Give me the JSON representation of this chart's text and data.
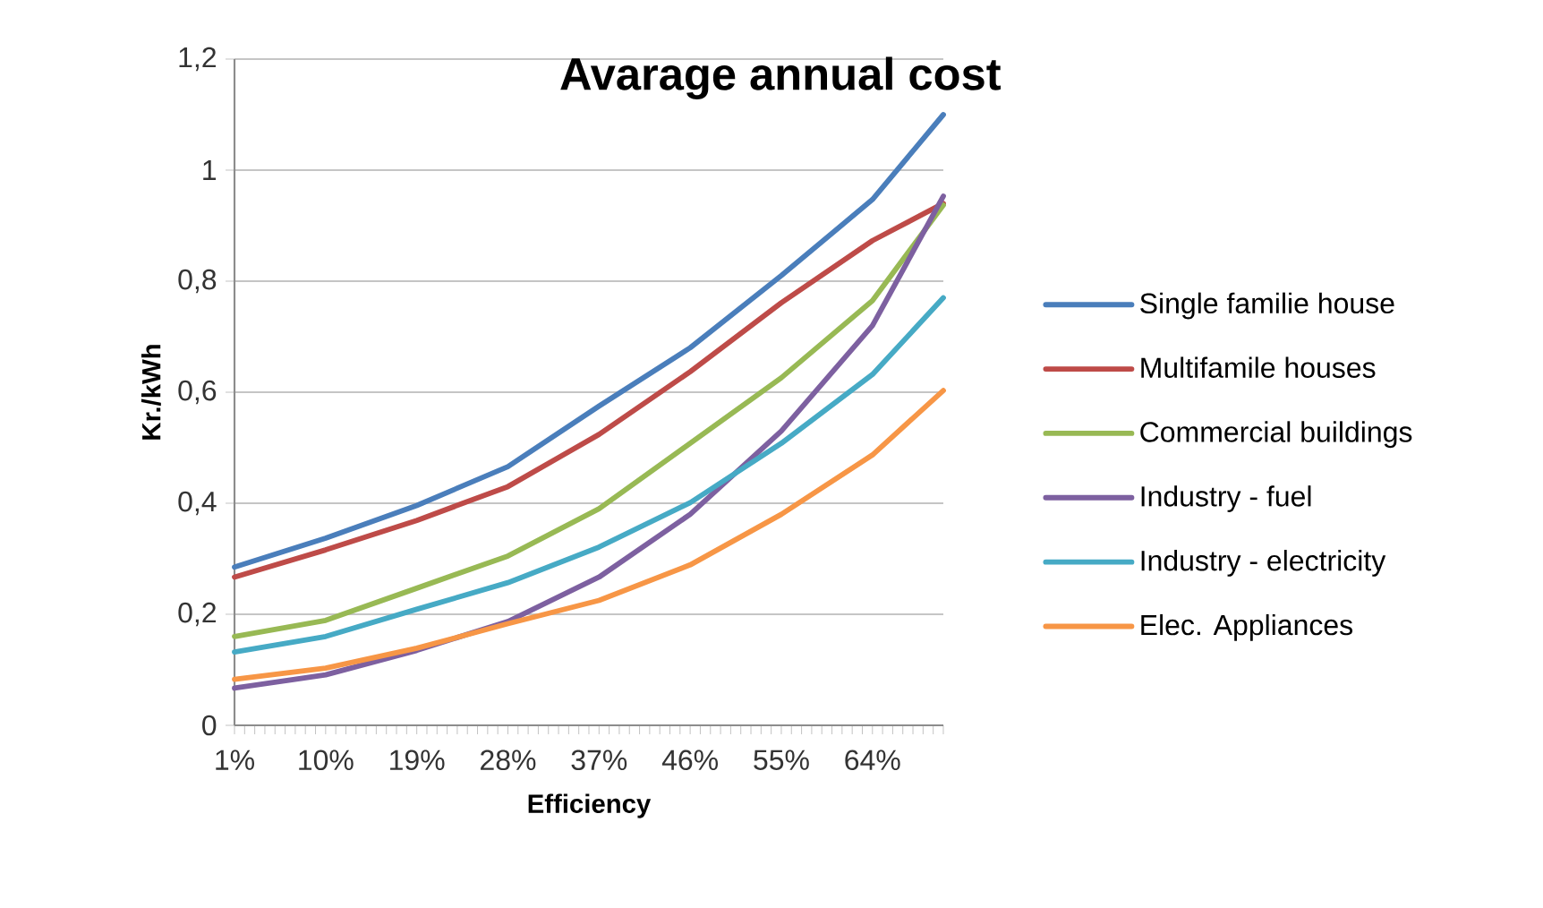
{
  "chart_data": {
    "type": "line",
    "title": "Avarage annual cost",
    "xlabel": "Efficiency",
    "ylabel": "Kr./kWh",
    "xlim": [
      1,
      71
    ],
    "ylim": [
      0,
      1.2
    ],
    "xticks": [
      {
        "value": 1,
        "label": "1%"
      },
      {
        "value": 2,
        "label": null
      },
      {
        "value": 3,
        "label": null
      },
      {
        "value": 4,
        "label": null
      },
      {
        "value": 5,
        "label": null
      },
      {
        "value": 6,
        "label": null
      },
      {
        "value": 7,
        "label": null
      },
      {
        "value": 8,
        "label": null
      },
      {
        "value": 9,
        "label": null
      },
      {
        "value": 10,
        "label": "10%"
      },
      {
        "value": 11,
        "label": null
      },
      {
        "value": 12,
        "label": null
      },
      {
        "value": 13,
        "label": null
      },
      {
        "value": 14,
        "label": null
      },
      {
        "value": 15,
        "label": null
      },
      {
        "value": 16,
        "label": null
      },
      {
        "value": 17,
        "label": null
      },
      {
        "value": 18,
        "label": null
      },
      {
        "value": 19,
        "label": "19%"
      },
      {
        "value": 20,
        "label": null
      },
      {
        "value": 21,
        "label": null
      },
      {
        "value": 22,
        "label": null
      },
      {
        "value": 23,
        "label": null
      },
      {
        "value": 24,
        "label": null
      },
      {
        "value": 25,
        "label": null
      },
      {
        "value": 26,
        "label": null
      },
      {
        "value": 27,
        "label": null
      },
      {
        "value": 28,
        "label": "28%"
      },
      {
        "value": 29,
        "label": null
      },
      {
        "value": 30,
        "label": null
      },
      {
        "value": 31,
        "label": null
      },
      {
        "value": 32,
        "label": null
      },
      {
        "value": 33,
        "label": null
      },
      {
        "value": 34,
        "label": null
      },
      {
        "value": 35,
        "label": null
      },
      {
        "value": 36,
        "label": null
      },
      {
        "value": 37,
        "label": "37%"
      },
      {
        "value": 38,
        "label": null
      },
      {
        "value": 39,
        "label": null
      },
      {
        "value": 40,
        "label": null
      },
      {
        "value": 41,
        "label": null
      },
      {
        "value": 42,
        "label": null
      },
      {
        "value": 43,
        "label": null
      },
      {
        "value": 44,
        "label": null
      },
      {
        "value": 45,
        "label": null
      },
      {
        "value": 46,
        "label": "46%"
      },
      {
        "value": 47,
        "label": null
      },
      {
        "value": 48,
        "label": null
      },
      {
        "value": 49,
        "label": null
      },
      {
        "value": 50,
        "label": null
      },
      {
        "value": 51,
        "label": null
      },
      {
        "value": 52,
        "label": null
      },
      {
        "value": 53,
        "label": null
      },
      {
        "value": 54,
        "label": null
      },
      {
        "value": 55,
        "label": "55%"
      },
      {
        "value": 56,
        "label": null
      },
      {
        "value": 57,
        "label": null
      },
      {
        "value": 58,
        "label": null
      },
      {
        "value": 59,
        "label": null
      },
      {
        "value": 60,
        "label": null
      },
      {
        "value": 61,
        "label": null
      },
      {
        "value": 62,
        "label": null
      },
      {
        "value": 63,
        "label": null
      },
      {
        "value": 64,
        "label": "64%"
      },
      {
        "value": 65,
        "label": null
      },
      {
        "value": 66,
        "label": null
      },
      {
        "value": 67,
        "label": null
      },
      {
        "value": 68,
        "label": null
      },
      {
        "value": 69,
        "label": null
      },
      {
        "value": 70,
        "label": null
      },
      {
        "value": 71,
        "label": null
      }
    ],
    "yticks": [
      {
        "value": 0,
        "label": "0"
      },
      {
        "value": 0.2,
        "label": "0,2"
      },
      {
        "value": 0.4,
        "label": "0,4"
      },
      {
        "value": 0.6,
        "label": "0,6"
      },
      {
        "value": 0.8,
        "label": "0,8"
      },
      {
        "value": 1,
        "label": "1"
      },
      {
        "value": 1.2,
        "label": "1,2"
      }
    ],
    "grid": "y",
    "legend": "right",
    "marker": "none",
    "line_style": "solid",
    "x": [
      1,
      10,
      19,
      28,
      37,
      46,
      55,
      64,
      71
    ],
    "series": [
      {
        "name": "Single familie house",
        "color": "#4a7ebb",
        "values": [
          0.285,
          0.337,
          0.396,
          0.466,
          0.575,
          0.68,
          0.81,
          0.947,
          1.1
        ]
      },
      {
        "name": "Multifamile houses",
        "color": "#be4b48",
        "values": [
          0.267,
          0.316,
          0.369,
          0.43,
          0.524,
          0.637,
          0.761,
          0.873,
          0.94
        ]
      },
      {
        "name": "Commercial buildings",
        "color": "#98b954",
        "values": [
          0.16,
          0.189,
          0.247,
          0.305,
          0.39,
          0.508,
          0.626,
          0.765,
          0.937
        ]
      },
      {
        "name": "Industry - fuel",
        "color": "#7d60a0",
        "values": [
          0.067,
          0.091,
          0.135,
          0.187,
          0.267,
          0.38,
          0.53,
          0.72,
          0.953
        ]
      },
      {
        "name": "Industry - electricity",
        "color": "#46aac5",
        "values": [
          0.132,
          0.16,
          0.209,
          0.257,
          0.321,
          0.401,
          0.508,
          0.632,
          0.77
        ]
      },
      {
        "name": "Elec. Appliances",
        "color": "#f79646",
        "values": [
          0.083,
          0.103,
          0.139,
          0.183,
          0.225,
          0.289,
          0.38,
          0.487,
          0.603
        ]
      }
    ]
  }
}
